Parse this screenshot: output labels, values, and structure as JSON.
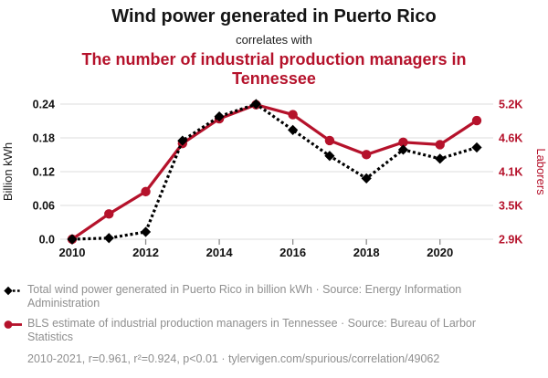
{
  "header": {
    "title": "Wind power generated in Puerto Rico",
    "connector": "correlates with",
    "subtitle": "The number of industrial production managers in Tennessee"
  },
  "colors": {
    "accent_red": "#b5122b",
    "series_black": "#000000",
    "grid_gray": "#e4e4e4",
    "tick_gray": "#8c8c8c",
    "legend_gray": "#8f8f8f"
  },
  "chart_data": {
    "type": "line",
    "x": [
      2010,
      2011,
      2012,
      2013,
      2014,
      2015,
      2016,
      2017,
      2018,
      2019,
      2020,
      2021
    ],
    "x_tick_years": [
      2010,
      2012,
      2014,
      2016,
      2018,
      2020
    ],
    "x_tick_labels": [
      "2010",
      "2012",
      "2014",
      "2016",
      "2018",
      "2020"
    ],
    "grid": true,
    "left_axis": {
      "label": "Billion kWh",
      "range": [
        0,
        0.24
      ],
      "ticks": [
        0,
        0.06,
        0.12,
        0.18,
        0.24
      ],
      "tick_labels": [
        "0.0",
        "0.06",
        "0.12",
        "0.18",
        "0.24"
      ]
    },
    "right_axis": {
      "label": "Laborers",
      "range": [
        2900,
        5200
      ],
      "ticks": [
        2900,
        3475,
        4050,
        4625,
        5200
      ],
      "tick_labels": [
        "2.9K",
        "3.5K",
        "4.1K",
        "4.6K",
        "5.2K"
      ]
    },
    "series": [
      {
        "name": "Total wind power generated in Puerto Rico",
        "axis": "left",
        "color": "#000000",
        "marker": "diamond",
        "line": "dashed",
        "values": [
          0.0,
          0.002,
          0.013,
          0.175,
          0.218,
          0.24,
          0.194,
          0.148,
          0.108,
          0.159,
          0.143,
          0.163
        ]
      },
      {
        "name": "BLS estimate of industrial production managers in Tennessee",
        "axis": "right",
        "color": "#b5122b",
        "marker": "circle",
        "line": "solid",
        "values": [
          2900,
          3330,
          3710,
          4530,
          4950,
          5190,
          5020,
          4580,
          4340,
          4550,
          4510,
          4920
        ]
      }
    ]
  },
  "legend": {
    "entries": [
      {
        "label": "Total wind power generated in Puerto Rico in billion kWh · Source: Energy Information Administration"
      },
      {
        "label": "BLS estimate of industrial production managers in Tennessee · Source: Bureau of Larbor Statistics"
      }
    ],
    "footnote": "2010-2021, r=0.961, r²=0.924, p<0.01 · tylervigen.com/spurious/correlation/49062"
  }
}
